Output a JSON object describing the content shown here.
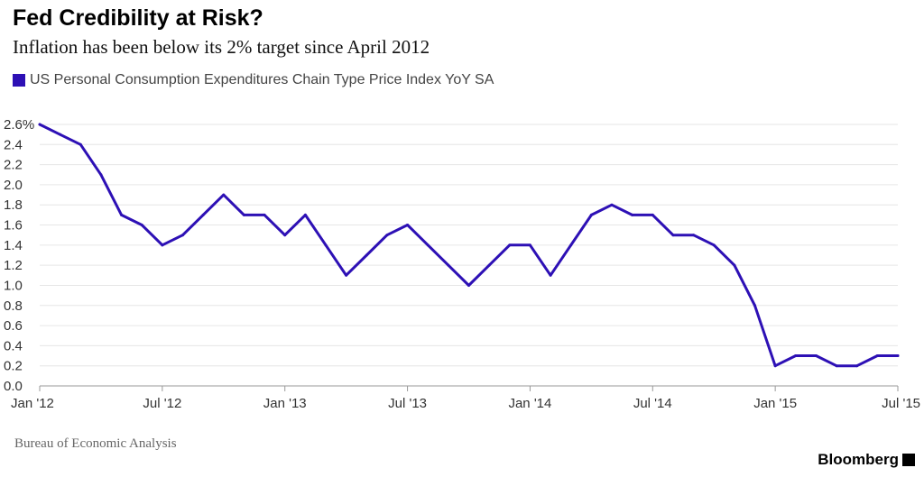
{
  "title": "Fed Credibility at Risk?",
  "subtitle": "Inflation has been below its 2% target since April 2012",
  "source": "Bureau of Economic Analysis",
  "brand": "Bloomberg",
  "colors": {
    "series": "#2d10b5",
    "grid": "#e6e6e6",
    "axis": "#999999"
  },
  "chart_data": {
    "type": "line",
    "title": "Fed Credibility at Risk?",
    "subtitle": "Inflation has been below its 2% target since April 2012",
    "xlabel": "",
    "ylabel": "",
    "ylim": [
      0.0,
      2.6
    ],
    "grid": true,
    "legend_placement": "top-left",
    "x_ticks": [
      "Jan '12",
      "Jul '12",
      "Jan '13",
      "Jul '13",
      "Jan '14",
      "Jul '14",
      "Jan '15",
      "Jul '15"
    ],
    "y_ticks": [
      "0.0",
      "0.2",
      "0.4",
      "0.6",
      "0.8",
      "1.0",
      "1.2",
      "1.4",
      "1.6",
      "1.8",
      "2.0",
      "2.2",
      "2.4",
      "2.6%"
    ],
    "x": [
      "2012-01",
      "2012-02",
      "2012-03",
      "2012-04",
      "2012-05",
      "2012-06",
      "2012-07",
      "2012-08",
      "2012-09",
      "2012-10",
      "2012-11",
      "2012-12",
      "2013-01",
      "2013-02",
      "2013-03",
      "2013-04",
      "2013-05",
      "2013-06",
      "2013-07",
      "2013-08",
      "2013-09",
      "2013-10",
      "2013-11",
      "2013-12",
      "2014-01",
      "2014-02",
      "2014-03",
      "2014-04",
      "2014-05",
      "2014-06",
      "2014-07",
      "2014-08",
      "2014-09",
      "2014-10",
      "2014-11",
      "2014-12",
      "2015-01",
      "2015-02",
      "2015-03",
      "2015-04",
      "2015-05",
      "2015-06",
      "2015-07"
    ],
    "series": [
      {
        "name": "US Personal Consumption Expenditures Chain Type Price Index YoY SA",
        "values": [
          2.6,
          2.5,
          2.4,
          2.1,
          1.7,
          1.6,
          1.4,
          1.5,
          1.7,
          1.9,
          1.7,
          1.7,
          1.5,
          1.7,
          1.4,
          1.1,
          1.3,
          1.5,
          1.6,
          1.4,
          1.2,
          1.0,
          1.2,
          1.4,
          1.4,
          1.1,
          1.4,
          1.7,
          1.8,
          1.7,
          1.7,
          1.5,
          1.5,
          1.4,
          1.2,
          0.8,
          0.2,
          0.3,
          0.3,
          0.2,
          0.2,
          0.3,
          0.3
        ]
      }
    ]
  }
}
